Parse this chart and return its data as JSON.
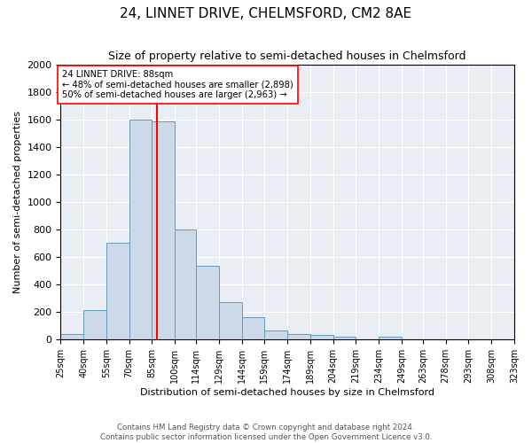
{
  "title": "24, LINNET DRIVE, CHELMSFORD, CM2 8AE",
  "subtitle": "Size of property relative to semi-detached houses in Chelmsford",
  "xlabel": "Distribution of semi-detached houses by size in Chelmsford",
  "ylabel": "Number of semi-detached properties",
  "footer_line1": "Contains HM Land Registry data © Crown copyright and database right 2024.",
  "footer_line2": "Contains public sector information licensed under the Open Government Licence v3.0.",
  "annotation_line1": "24 LINNET DRIVE: 88sqm",
  "annotation_line2": "← 48% of semi-detached houses are smaller (2,898)",
  "annotation_line3": "50% of semi-detached houses are larger (2,963) →",
  "bar_color": "#ccd9e8",
  "bar_edge_color": "#6699bb",
  "redline_x": 88,
  "bins": [
    25,
    40,
    55,
    70,
    85,
    100,
    114,
    129,
    144,
    159,
    174,
    189,
    204,
    219,
    234,
    249,
    263,
    278,
    293,
    308,
    323
  ],
  "bin_labels": [
    "25sqm",
    "40sqm",
    "55sqm",
    "70sqm",
    "85sqm",
    "100sqm",
    "114sqm",
    "129sqm",
    "144sqm",
    "159sqm",
    "174sqm",
    "189sqm",
    "204sqm",
    "219sqm",
    "234sqm",
    "249sqm",
    "263sqm",
    "278sqm",
    "293sqm",
    "308sqm",
    "323sqm"
  ],
  "counts": [
    40,
    215,
    700,
    1600,
    1590,
    800,
    535,
    270,
    160,
    65,
    35,
    30,
    20,
    0,
    20,
    0,
    0,
    0,
    0,
    0
  ],
  "ylim": [
    0,
    2000
  ],
  "yticks": [
    0,
    200,
    400,
    600,
    800,
    1000,
    1200,
    1400,
    1600,
    1800,
    2000
  ],
  "background_color": "#e8eef4",
  "grid_color": "#ffffff",
  "title_fontsize": 11,
  "subtitle_fontsize": 9
}
